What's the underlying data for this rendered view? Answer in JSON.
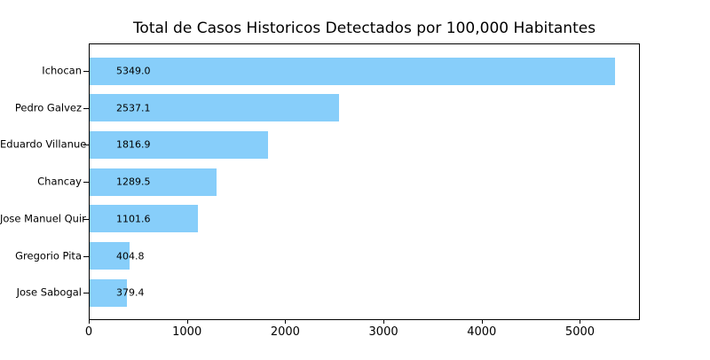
{
  "chart_data": {
    "type": "bar",
    "orientation": "horizontal",
    "title": "Total de Casos Historicos Detectados por 100,000 Habitantes",
    "categories": [
      "Ichocan",
      "Pedro Galvez",
      "Eduardo Villanue",
      "Chancay",
      "Jose Manuel Quir",
      "Gregorio Pita",
      "Jose Sabogal"
    ],
    "values": [
      5349.0,
      2537.1,
      1816.9,
      1289.5,
      1101.6,
      404.8,
      379.4
    ],
    "value_labels": [
      "5349.0",
      "2537.1",
      "1816.9",
      "1289.5",
      "1101.6",
      "404.8",
      "379.4"
    ],
    "xlabel": "",
    "ylabel": "",
    "x_ticks": [
      0,
      1000,
      2000,
      3000,
      4000,
      5000
    ],
    "x_tick_labels": [
      "0",
      "1000",
      "2000",
      "3000",
      "4000",
      "5000"
    ],
    "xlim": [
      0,
      5610
    ],
    "grid": false,
    "legend": false,
    "bar_color": "#87CEFA",
    "text_color": "#000000",
    "axis_color": "#000000",
    "background_color": "#ffffff"
  }
}
